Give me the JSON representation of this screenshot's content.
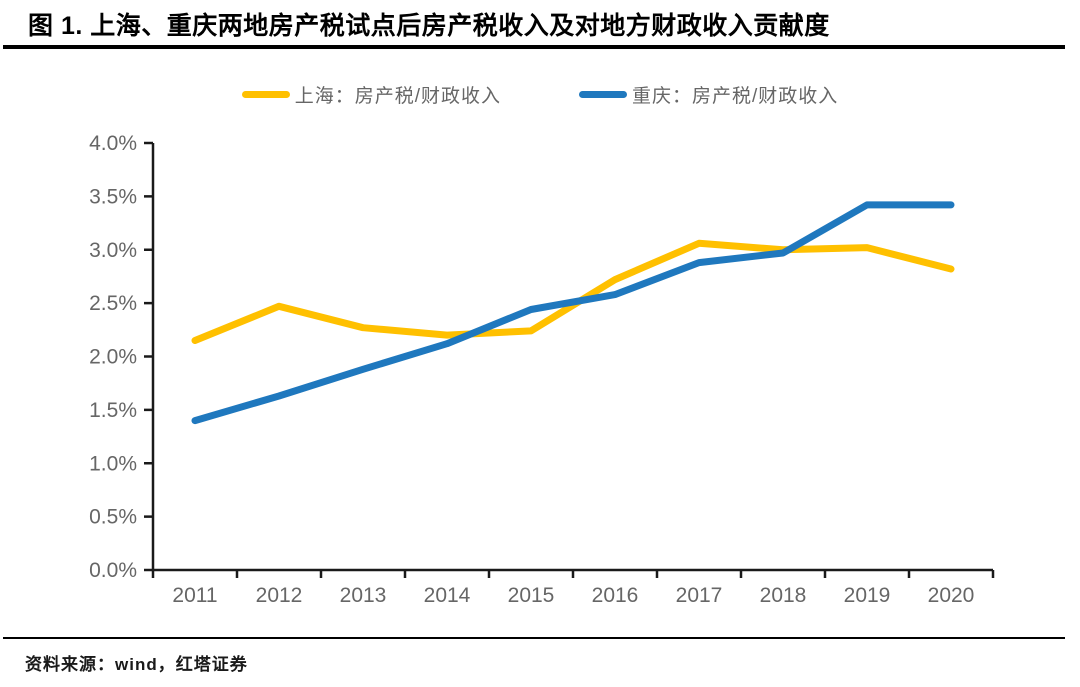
{
  "title": "图 1. 上海、重庆两地房产税试点后房产税收入及对地方财政收入贡献度",
  "legend": [
    {
      "label": "上海：房产税/财政收入",
      "color": "#FFC000"
    },
    {
      "label": "重庆：房产税/财政收入",
      "color": "#1F78BE"
    }
  ],
  "source_note": "资料来源：wind，红塔证券",
  "colors": {
    "shanghai_line": "#FFC000",
    "chongqing_line": "#1F78BE",
    "axis": "#1a1a1a",
    "tick_label": "#666666"
  },
  "chart_data": {
    "type": "line",
    "title": "图 1. 上海、重庆两地房产税试点后房产税收入及对地方财政收入贡献度",
    "categories": [
      "2011",
      "2012",
      "2013",
      "2014",
      "2015",
      "2016",
      "2017",
      "2018",
      "2019",
      "2020"
    ],
    "series": [
      {
        "name": "上海：房产税/财政收入",
        "color": "#FFC000",
        "values": [
          2.15,
          2.47,
          2.27,
          2.2,
          2.24,
          2.72,
          3.06,
          3.0,
          3.02,
          2.82
        ]
      },
      {
        "name": "重庆：房产税/财政收入",
        "color": "#1F78BE",
        "values": [
          1.4,
          1.63,
          1.88,
          2.12,
          2.44,
          2.58,
          2.88,
          2.97,
          3.42,
          3.42
        ]
      }
    ],
    "xlabel": "",
    "ylabel": "",
    "ylim": [
      0,
      4
    ],
    "ytick_step": 0.5,
    "ytick_format": "0.0%",
    "grid": false,
    "legend_position": "top-center",
    "source": "资料来源：wind，红塔证券"
  }
}
